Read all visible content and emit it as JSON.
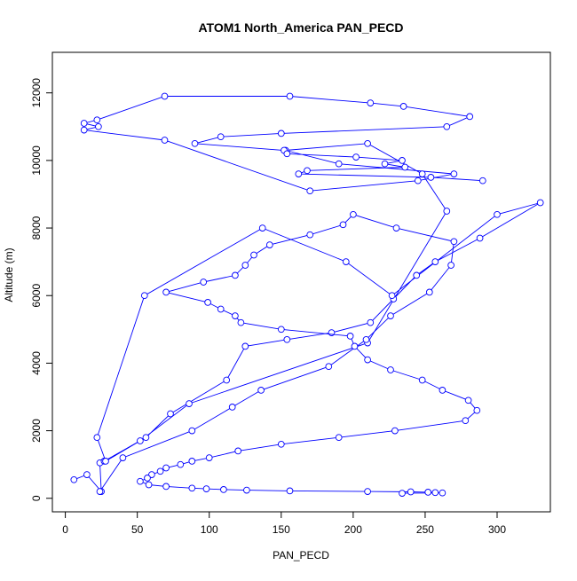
{
  "chart_data": {
    "type": "line",
    "title": "ATOM1 North_America PAN_PECD",
    "xlabel": "PAN_PECD",
    "ylabel": "Altitude (m)",
    "xlim": [
      -9,
      337
    ],
    "ylim": [
      -400,
      13200
    ],
    "xticks": [
      0,
      50,
      100,
      150,
      200,
      250,
      300
    ],
    "yticks": [
      0,
      2000,
      4000,
      6000,
      8000,
      10000,
      12000
    ],
    "grid": false,
    "legend": "none",
    "markers": "open-circle",
    "color": "#0000ff",
    "series": [
      {
        "x": [
          6,
          15,
          25,
          24,
          27,
          56,
          73,
          112,
          125,
          154,
          185,
          212,
          228,
          244,
          257,
          288,
          330,
          300,
          227,
          195,
          137,
          55,
          22,
          28,
          52,
          86,
          210,
          265,
          248,
          210,
          153,
          190,
          270,
          245,
          170,
          69,
          13,
          23,
          13,
          22,
          69,
          156,
          212,
          235,
          281,
          265,
          150,
          108,
          90,
          152,
          154,
          202,
          234,
          222,
          236,
          168,
          162,
          254,
          290
        ],
        "y": [
          550,
          700,
          200,
          1050,
          1100,
          1800,
          2500,
          3500,
          4500,
          4700,
          4900,
          5200,
          5900,
          6600,
          7000,
          7700,
          8750,
          8400,
          6000,
          7000,
          8000,
          6000,
          1800,
          1100,
          1700,
          2800,
          4600,
          8500,
          9600,
          10500,
          10300,
          9900,
          9600,
          9400,
          9100,
          10600,
          10900,
          11000,
          11100,
          11200,
          11900,
          11900,
          11700,
          11600,
          11300,
          11000,
          10800,
          10700,
          10500,
          10300,
          10200,
          10100,
          10000,
          9900,
          9800,
          9700,
          9600,
          9500,
          9400
        ]
      },
      {
        "x": [
          24,
          40,
          88,
          116,
          136,
          183,
          209,
          226,
          253,
          268,
          270,
          230,
          200,
          193,
          170,
          142,
          131,
          125,
          118,
          96,
          70,
          99,
          108,
          118,
          122,
          150,
          198,
          201,
          210,
          226,
          248,
          262,
          280,
          286,
          278,
          229,
          190,
          150,
          120,
          100,
          88,
          80,
          70,
          66,
          60,
          57,
          52,
          58,
          70,
          88,
          98,
          110,
          126,
          156,
          210,
          240,
          252,
          257,
          262,
          234
        ],
        "y": [
          200,
          1200,
          2000,
          2700,
          3200,
          3900,
          4700,
          5400,
          6100,
          6900,
          7600,
          8000,
          8400,
          8100,
          7800,
          7500,
          7200,
          6900,
          6600,
          6400,
          6100,
          5800,
          5600,
          5400,
          5200,
          5000,
          4800,
          4500,
          4100,
          3800,
          3500,
          3200,
          2900,
          2600,
          2300,
          2000,
          1800,
          1600,
          1400,
          1200,
          1100,
          1000,
          900,
          800,
          700,
          600,
          500,
          400,
          350,
          300,
          280,
          260,
          240,
          220,
          200,
          190,
          180,
          170,
          160,
          150
        ]
      }
    ]
  }
}
